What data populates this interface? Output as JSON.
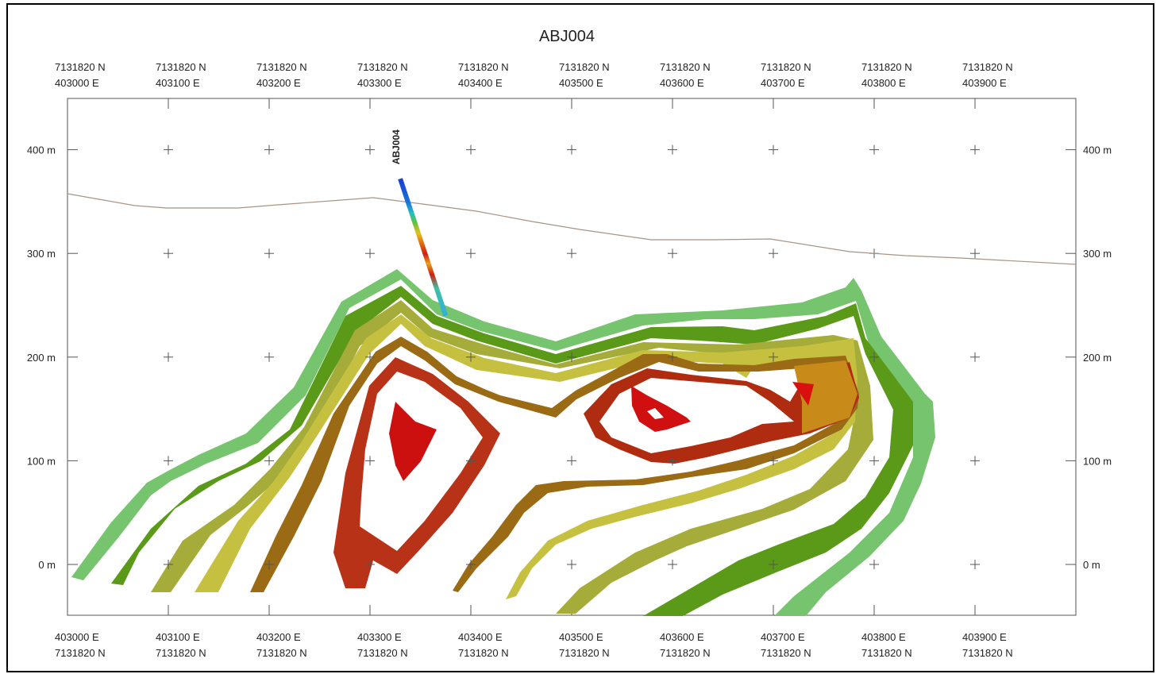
{
  "title": "ABJ004",
  "eastings": [
    "403000 E",
    "403100 E",
    "403200 E",
    "403300 E",
    "403400 E",
    "403500 E",
    "403600 E",
    "403700 E",
    "403800 E",
    "403900 E"
  ],
  "northing": "7131820 N",
  "elevation_labels": [
    "400 m",
    "300 m",
    "200 m",
    "100 m",
    "0 m"
  ],
  "elevation_values": [
    400,
    300,
    200,
    100,
    0
  ],
  "drillhole": {
    "name": "ABJ004",
    "collar": {
      "easting": 403330,
      "elevation": 372
    },
    "toe": {
      "easting": 403375,
      "elevation": 240
    }
  },
  "colors": {
    "topography": "#a89484",
    "grid_cross": "#555555",
    "shell_high": "#d01010",
    "shell_mid": "#c8a020",
    "shell_low": "#76c46e"
  }
}
